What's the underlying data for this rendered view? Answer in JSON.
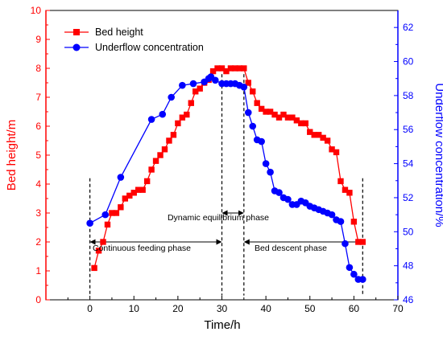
{
  "chart_data": {
    "type": "line",
    "xlabel": "Time/h",
    "ylabel_left": "Bed height/m",
    "ylabel_right": "Underflow concentration/%",
    "xlim": [
      -10,
      70
    ],
    "ylim_left": [
      0,
      10
    ],
    "ylim_right": [
      46,
      63
    ],
    "x_ticks": [
      0,
      10,
      20,
      30,
      40,
      50,
      60,
      70
    ],
    "y_left_ticks": [
      0,
      1,
      2,
      3,
      4,
      5,
      6,
      7,
      8,
      9,
      10
    ],
    "y_right_ticks": [
      46,
      48,
      50,
      52,
      54,
      56,
      58,
      60,
      62
    ],
    "grid": false,
    "legend_position": "top-left",
    "series": [
      {
        "name": "Bed height",
        "axis": "left",
        "color": "#ff0000",
        "marker": "square",
        "x": [
          1,
          2,
          3,
          4,
          5,
          6,
          7,
          8,
          9,
          10,
          11,
          12,
          13,
          14,
          15,
          16,
          17,
          18,
          19,
          20,
          21,
          22,
          23,
          24,
          25,
          26,
          27,
          28,
          29,
          30,
          31,
          32,
          33,
          34,
          35,
          36,
          37,
          38,
          39,
          40,
          41,
          42,
          43,
          44,
          45,
          46,
          47,
          48,
          49,
          50,
          51,
          52,
          53,
          54,
          55,
          56,
          57,
          58,
          59,
          60,
          61,
          62
        ],
        "y": [
          1.1,
          1.7,
          2.0,
          2.6,
          3.0,
          3.0,
          3.2,
          3.5,
          3.6,
          3.7,
          3.8,
          3.8,
          4.1,
          4.5,
          4.8,
          5.0,
          5.2,
          5.5,
          5.7,
          6.1,
          6.3,
          6.4,
          6.8,
          7.2,
          7.3,
          7.5,
          7.6,
          7.9,
          8.0,
          8.0,
          7.9,
          8.0,
          8.0,
          8.0,
          8.0,
          7.5,
          7.2,
          6.8,
          6.6,
          6.5,
          6.5,
          6.4,
          6.3,
          6.4,
          6.3,
          6.3,
          6.2,
          6.1,
          6.1,
          5.8,
          5.7,
          5.7,
          5.6,
          5.5,
          5.2,
          5.1,
          4.1,
          3.8,
          3.7,
          2.7,
          2.0,
          2.0
        ]
      },
      {
        "name": "Underflow concentration",
        "axis": "right",
        "color": "#0000ff",
        "marker": "circle",
        "x": [
          0,
          3.5,
          7,
          14,
          16.5,
          18.5,
          21,
          23.5,
          26,
          27,
          27.5,
          28.5,
          30,
          31,
          32,
          33,
          34,
          35,
          36,
          37,
          38,
          39,
          40,
          41,
          42,
          43,
          44,
          45,
          46,
          47,
          48,
          49,
          50,
          51,
          52,
          53,
          54,
          55,
          56,
          57,
          58,
          59,
          60,
          61,
          62
        ],
        "y": [
          50.5,
          51,
          53.2,
          56.6,
          56.9,
          57.9,
          58.6,
          58.7,
          58.8,
          59,
          59.1,
          58.9,
          58.7,
          58.7,
          58.7,
          58.7,
          58.6,
          58.5,
          57,
          56.2,
          55.4,
          55.3,
          54.0,
          53.5,
          52.4,
          52.3,
          52.0,
          51.9,
          51.6,
          51.6,
          51.8,
          51.7,
          51.5,
          51.4,
          51.3,
          51.2,
          51.1,
          51.0,
          50.7,
          50.6,
          49.3,
          47.9,
          47.5,
          47.2,
          47.2
        ]
      }
    ],
    "annotations": {
      "phase_feeding": "Continuous feeding phase",
      "phase_equilibrium": "Dynamic equilibrium phase",
      "phase_descent": "Bed descent phase",
      "dashed_lines_x": [
        0,
        30,
        35,
        62
      ],
      "arrow_level_left": 2.0,
      "equilibrium_arrow_level_left": 3.0
    }
  }
}
